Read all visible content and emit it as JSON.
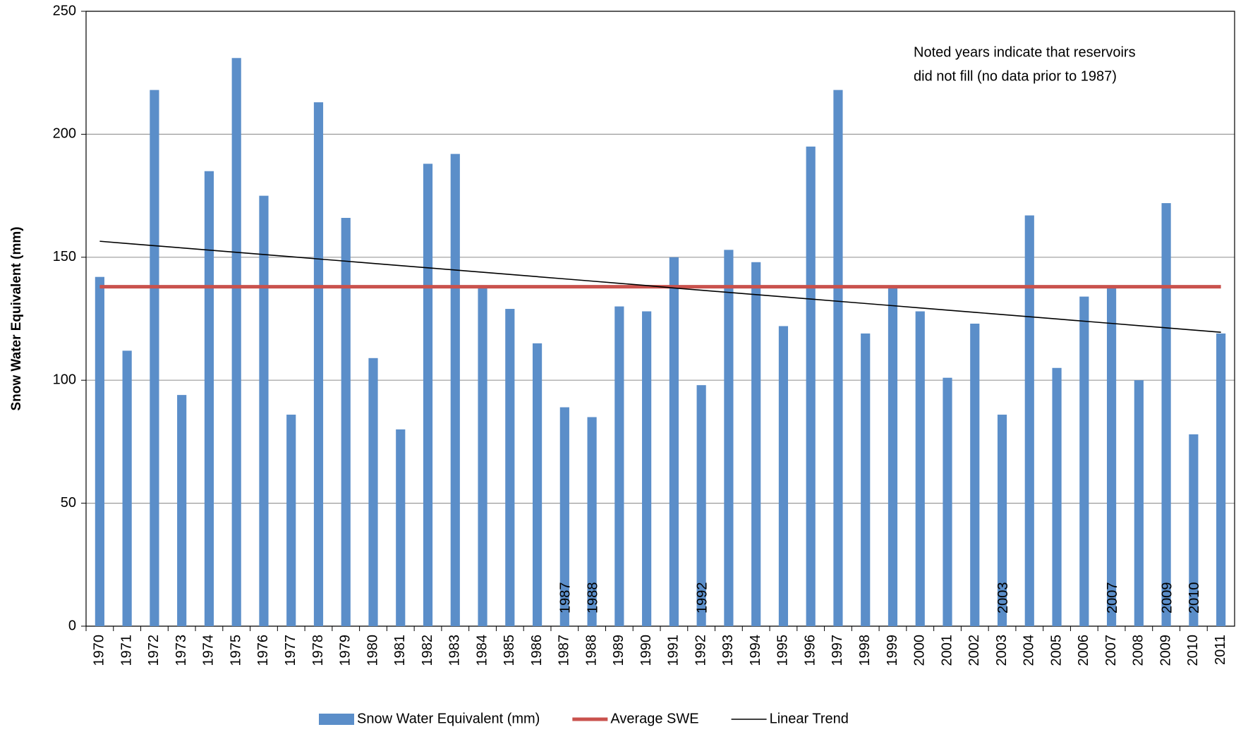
{
  "chart_data": {
    "type": "bar",
    "y_label": "Snow Water Equivalent (mm)",
    "note": [
      "Noted years indicate that reservoirs",
      "did not fill (no data prior to 1987)"
    ],
    "categories": [
      "1970",
      "1971",
      "1972",
      "1973",
      "1974",
      "1975",
      "1976",
      "1977",
      "1978",
      "1979",
      "1980",
      "1981",
      "1982",
      "1983",
      "1984",
      "1985",
      "1986",
      "1987",
      "1988",
      "1989",
      "1990",
      "1991",
      "1992",
      "1993",
      "1994",
      "1995",
      "1996",
      "1997",
      "1998",
      "1999",
      "2000",
      "2001",
      "2002",
      "2003",
      "2004",
      "2005",
      "2006",
      "2007",
      "2008",
      "2009",
      "2010",
      "2011"
    ],
    "noted_years": [
      "1987",
      "1988",
      "1992",
      "2003",
      "2007",
      "2009",
      "2010"
    ],
    "series": [
      {
        "name": "Snow Water Equivalent (mm)",
        "type": "bar",
        "color": "#5b8ec9",
        "values": [
          142,
          112,
          218,
          94,
          185,
          231,
          175,
          86,
          213,
          166,
          109,
          80,
          188,
          192,
          138,
          129,
          115,
          89,
          85,
          130,
          128,
          150,
          98,
          153,
          148,
          122,
          195,
          218,
          119,
          138,
          128,
          101,
          123,
          86,
          167,
          105,
          134,
          138,
          100,
          172,
          78,
          119
        ]
      },
      {
        "name": "Average SWE",
        "type": "line",
        "color": "#c9524d",
        "values": [
          138,
          138,
          138,
          138,
          138,
          138,
          138,
          138,
          138,
          138,
          138,
          138,
          138,
          138,
          138,
          138,
          138,
          138,
          138,
          138,
          138,
          138,
          138,
          138,
          138,
          138,
          138,
          138,
          138,
          138,
          138,
          138,
          138,
          138,
          138,
          138,
          138,
          138,
          138,
          138,
          138,
          138
        ]
      },
      {
        "name": "Linear Trend",
        "type": "line",
        "color": "#000000",
        "values": [
          156.5,
          155.6,
          154.7,
          153.8,
          152.9,
          152.0,
          151.1,
          150.2,
          149.3,
          148.4,
          147.5,
          146.6,
          145.7,
          144.8,
          143.9,
          143.0,
          142.1,
          141.2,
          140.3,
          139.4,
          138.5,
          137.5,
          136.6,
          135.7,
          134.8,
          133.9,
          133.0,
          132.1,
          131.2,
          130.3,
          129.4,
          128.5,
          127.6,
          126.7,
          125.8,
          124.9,
          124.0,
          123.1,
          122.2,
          121.3,
          120.4,
          119.5
        ]
      }
    ],
    "ylim": [
      0,
      250
    ],
    "yticks": [
      0,
      50,
      100,
      150,
      200,
      250
    ],
    "grid": true
  }
}
